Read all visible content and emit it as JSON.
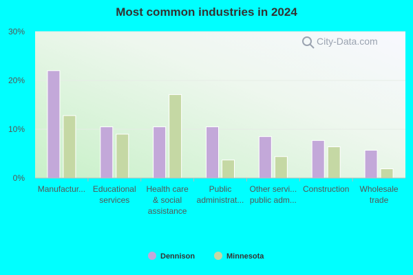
{
  "chart_data": {
    "type": "bar",
    "title": "Most common industries in 2024",
    "categories": [
      [
        "Manufactur..."
      ],
      [
        "Educational",
        "services"
      ],
      [
        "Health care",
        "& social",
        "assistance"
      ],
      [
        "Public",
        "administrat..."
      ],
      [
        "Other servi...",
        "public adm..."
      ],
      [
        "Construction"
      ],
      [
        "Wholesale",
        "trade"
      ]
    ],
    "series": [
      {
        "name": "Dennison",
        "color": "#c3a8d9",
        "values": [
          22.0,
          10.5,
          10.5,
          10.5,
          8.5,
          7.7,
          5.7
        ]
      },
      {
        "name": "Minnesota",
        "color": "#c5d8a4",
        "values": [
          12.8,
          9.0,
          17.1,
          3.7,
          4.4,
          6.4,
          1.9
        ]
      }
    ],
    "ylim": [
      0,
      30
    ],
    "yticks": [
      0,
      10,
      20,
      30
    ],
    "ytick_labels": [
      "0%",
      "10%",
      "20%",
      "30%"
    ],
    "grid": true,
    "legend_position": "bottom-center",
    "watermark": "City-Data.com"
  }
}
